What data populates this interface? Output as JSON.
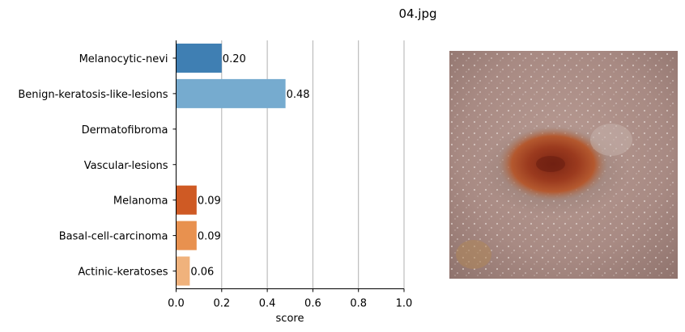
{
  "figure_title": "04.jpg",
  "chart_data": {
    "type": "bar",
    "orientation": "horizontal",
    "categories": [
      "Melanocytic-nevi",
      "Benign-keratosis-like-lesions",
      "Dermatofibroma",
      "Vascular-lesions",
      "Melanoma",
      "Basal-cell-carcinoma",
      "Actinic-keratoses"
    ],
    "values": [
      0.2,
      0.48,
      0.0,
      0.0,
      0.09,
      0.09,
      0.06
    ],
    "value_labels": [
      "0.20",
      "0.48",
      "",
      "",
      "0.09",
      "0.09",
      "0.06"
    ],
    "colors": [
      "#3f7fb3",
      "#76abcf",
      "#9ecae1",
      "#c6dbef",
      "#cf5a24",
      "#e8914f",
      "#f0b27c"
    ],
    "xlabel": "score",
    "ylabel": "",
    "xlim": [
      0,
      1.0
    ],
    "xticks": [
      "0.0",
      "0.2",
      "0.4",
      "0.6",
      "0.8",
      "1.0"
    ],
    "grid": "vertical"
  },
  "image": {
    "description_icon": "skin-lesion-photo"
  }
}
